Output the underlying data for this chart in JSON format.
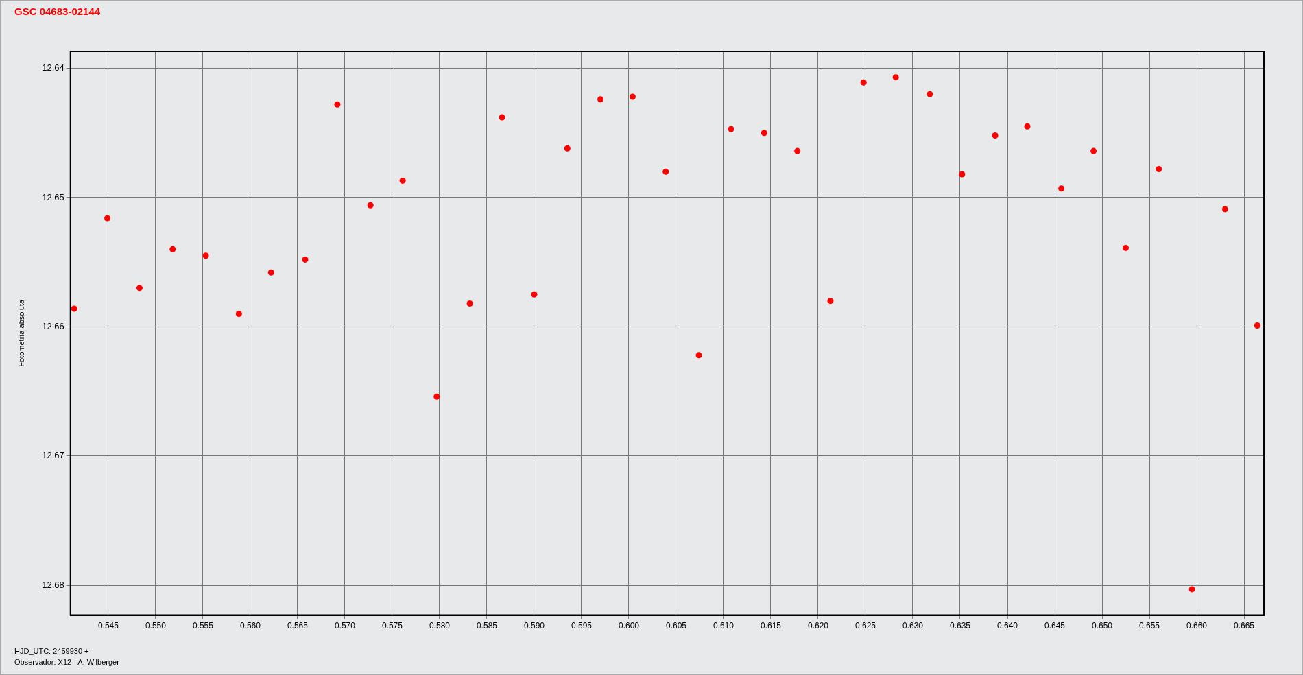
{
  "chart_data": {
    "type": "scatter",
    "title": "GSC 04683-02144",
    "ylabel": "Fotometría absoluta",
    "annotations": [
      "HJD_UTC: 2459930 +",
      "Observador: X12 - A. Wilberger"
    ],
    "x": [
      0.5414,
      0.5449,
      0.5483,
      0.5518,
      0.5553,
      0.5588,
      0.5622,
      0.5658,
      0.5692,
      0.5727,
      0.5761,
      0.5797,
      0.5832,
      0.5866,
      0.59,
      0.5935,
      0.597,
      0.6004,
      0.6039,
      0.6074,
      0.6108,
      0.6143,
      0.6178,
      0.6213,
      0.6248,
      0.6282,
      0.6318,
      0.6352,
      0.6387,
      0.6421,
      0.6457,
      0.6491,
      0.6525,
      0.656,
      0.6595,
      0.663,
      0.6664
    ],
    "series": [
      {
        "color": "#ff0000",
        "values": [
          12.6586,
          12.6516,
          12.657,
          12.654,
          12.6545,
          12.659,
          12.6558,
          12.6548,
          12.6428,
          12.6506,
          12.6487,
          12.6654,
          12.6582,
          12.6438,
          12.6575,
          12.6462,
          12.6424,
          12.6422,
          12.648,
          12.6622,
          12.6447,
          12.645,
          12.6464,
          12.658,
          12.6411,
          12.6407,
          12.642,
          12.6482,
          12.6452,
          12.6445,
          12.6493,
          12.6464,
          12.6539,
          12.6478,
          12.6803,
          12.6509,
          12.6599
        ]
      }
    ],
    "xlim": [
      0.541,
      0.6671
    ],
    "xticks": [
      0.545,
      {
        "value": 0.55,
        "label": "0.550"
      },
      0.555,
      {
        "value": 0.56,
        "label": "0.560"
      },
      0.565,
      {
        "value": 0.57,
        "label": "0.570"
      },
      0.575,
      {
        "value": 0.58,
        "label": "0.580"
      },
      0.585,
      {
        "value": 0.59,
        "label": "0.590"
      },
      0.595,
      {
        "value": 0.6,
        "label": "0.600"
      },
      0.605,
      {
        "value": 0.61,
        "label": "0.610"
      },
      0.615,
      {
        "value": 0.62,
        "label": "0.620"
      },
      0.625,
      {
        "value": 0.63,
        "label": "0.630"
      },
      0.635,
      {
        "value": 0.64,
        "label": "0.640"
      },
      0.645,
      {
        "value": 0.65,
        "label": "0.650"
      },
      0.655,
      {
        "value": 0.66,
        "label": "0.660"
      },
      0.665
    ],
    "ylim": [
      12.6823,
      12.6387
    ],
    "yticks": [
      12.64,
      12.65,
      12.66,
      12.67,
      12.68
    ],
    "grid": true,
    "legend": false,
    "marker": "circle"
  }
}
